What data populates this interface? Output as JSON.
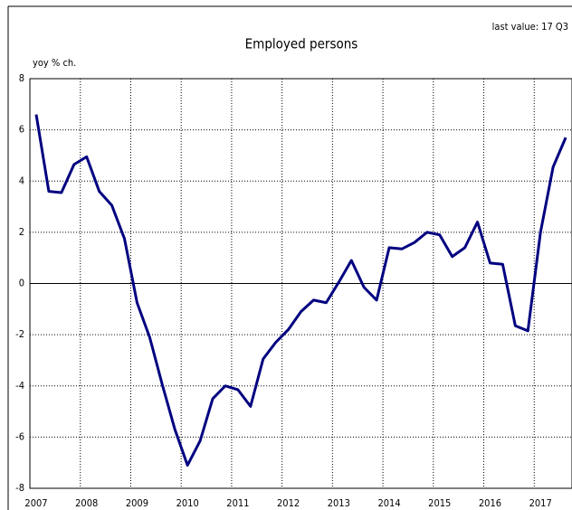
{
  "chart_data": {
    "type": "line",
    "title": "Employed persons",
    "ylabel": "yoy % ch.",
    "annotation": "last value: 17 Q3",
    "categories": [
      "2007",
      null,
      null,
      null,
      "2008",
      null,
      null,
      null,
      "2009",
      null,
      null,
      null,
      "2010",
      null,
      null,
      null,
      "2011",
      null,
      null,
      null,
      "2012",
      null,
      null,
      null,
      "2013",
      null,
      null,
      null,
      "2014",
      null,
      null,
      null,
      "2015",
      null,
      null,
      null,
      "2016",
      null,
      null,
      null,
      "2017",
      null,
      null
    ],
    "series": [
      {
        "name": "Employed persons",
        "color": "#000080",
        "values": [
          6.6,
          3.6,
          3.55,
          4.65,
          4.95,
          3.6,
          3.05,
          1.75,
          -0.75,
          -2.1,
          -3.95,
          -5.7,
          -7.1,
          -6.15,
          -4.5,
          -4.0,
          -4.15,
          -4.8,
          -2.95,
          -2.3,
          -1.8,
          -1.1,
          -0.65,
          -0.75,
          0.05,
          0.9,
          -0.15,
          -0.65,
          1.4,
          1.35,
          1.6,
          2.0,
          1.9,
          1.05,
          1.4,
          2.4,
          0.8,
          0.75,
          -1.65,
          -1.85,
          2.0,
          4.55,
          5.7
        ]
      }
    ],
    "ylim": [
      -8,
      8
    ],
    "yticks": [
      -8,
      -6,
      -4,
      -2,
      0,
      2,
      4,
      6,
      8
    ],
    "grid": true
  }
}
